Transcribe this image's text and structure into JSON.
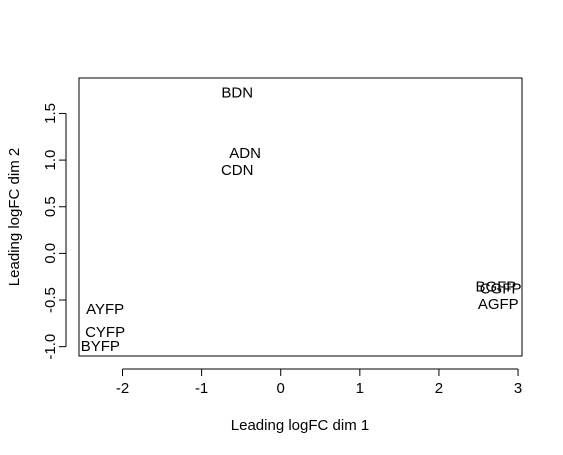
{
  "chart_data": {
    "type": "scatter",
    "title": "",
    "xlabel": "Leading logFC dim 1",
    "ylabel": "Leading logFC dim 2",
    "xlim": [
      -2.55,
      3.05
    ],
    "ylim": [
      -1.1,
      1.88
    ],
    "x_ticks": [
      -2,
      -1,
      0,
      1,
      2,
      3
    ],
    "y_ticks": [
      -1.0,
      -0.5,
      0.0,
      0.5,
      1.0,
      1.5
    ],
    "x_tick_labels": [
      "-2",
      "-1",
      "0",
      "1",
      "2",
      "3"
    ],
    "y_tick_labels": [
      "-1.0",
      "-0.5",
      "0.0",
      "0.5",
      "1.0",
      "1.5"
    ],
    "marker": "text-label",
    "points": [
      {
        "label": "BDN",
        "x": -0.55,
        "y": 1.72
      },
      {
        "label": "ADN",
        "x": -0.45,
        "y": 1.07
      },
      {
        "label": "CDN",
        "x": -0.55,
        "y": 0.89
      },
      {
        "label": "BGFP",
        "x": 2.72,
        "y": -0.36
      },
      {
        "label": "CGFP",
        "x": 2.78,
        "y": -0.38
      },
      {
        "label": "AGFP",
        "x": 2.75,
        "y": -0.55
      },
      {
        "label": "AYFP",
        "x": -2.22,
        "y": -0.6
      },
      {
        "label": "CYFP",
        "x": -2.22,
        "y": -0.85
      },
      {
        "label": "BYFP",
        "x": -2.28,
        "y": -1.0
      }
    ]
  }
}
